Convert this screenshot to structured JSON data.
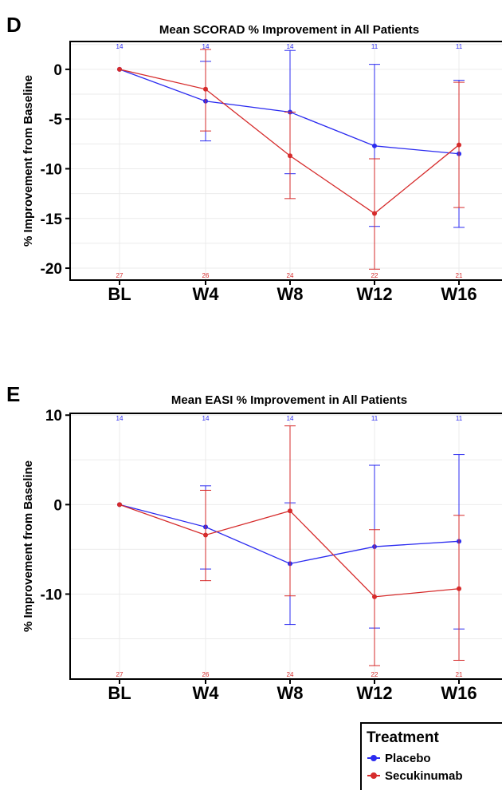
{
  "colors": {
    "placebo": "#2b2bf0",
    "secukinumab": "#d62b2b"
  },
  "legend": {
    "title": "Treatment",
    "entries": [
      {
        "label": "Placebo",
        "color": "#2b2bf0"
      },
      {
        "label": "Secukinumab",
        "color": "#d62b2b"
      }
    ]
  },
  "chart_data": [
    {
      "type": "line",
      "panel": "D",
      "title": "Mean SCORAD % Improvement in All Patients",
      "xlabel": "",
      "ylabel": "% Improvement from Baseline",
      "categories": [
        "BL",
        "W4",
        "W8",
        "W12",
        "W16"
      ],
      "yticks": [
        0,
        -5,
        -10,
        -15,
        -20
      ],
      "ylim": [
        -21.2,
        2.8
      ],
      "grid": true,
      "series": [
        {
          "name": "Placebo",
          "color": "#2b2bf0",
          "values": [
            0,
            -3.2,
            -4.3,
            -7.7,
            -8.5
          ],
          "error_low": [
            0,
            -7.2,
            -10.5,
            -15.8,
            -15.9
          ],
          "error_high": [
            0,
            0.8,
            1.9,
            0.5,
            -1.1
          ],
          "counts": [
            "14",
            "14",
            "14",
            "11",
            "11"
          ]
        },
        {
          "name": "Secukinumab",
          "color": "#d62b2b",
          "values": [
            0,
            -2.0,
            -8.7,
            -14.5,
            -7.6
          ],
          "error_low": [
            0,
            -6.2,
            -13.0,
            -20.1,
            -13.9
          ],
          "error_high": [
            0,
            2.0,
            -4.3,
            -9.0,
            -1.3
          ],
          "counts": [
            "27",
            "26",
            "24",
            "22",
            "21"
          ]
        }
      ]
    },
    {
      "type": "line",
      "panel": "E",
      "title": "Mean EASI % Improvement in All Patients",
      "xlabel": "",
      "ylabel": "% Improvement from Baseline",
      "categories": [
        "BL",
        "W4",
        "W8",
        "W12",
        "W16"
      ],
      "yticks": [
        10,
        0,
        -10
      ],
      "ylim": [
        -19.5,
        10.2
      ],
      "grid": true,
      "series": [
        {
          "name": "Placebo",
          "color": "#2b2bf0",
          "values": [
            0,
            -2.5,
            -6.6,
            -4.7,
            -4.1
          ],
          "error_low": [
            0,
            -7.2,
            -13.4,
            -13.8,
            -13.9
          ],
          "error_high": [
            0,
            2.1,
            0.2,
            4.4,
            5.6
          ],
          "counts": [
            "14",
            "14",
            "14",
            "11",
            "11"
          ]
        },
        {
          "name": "Secukinumab",
          "color": "#d62b2b",
          "values": [
            0,
            -3.4,
            -0.7,
            -10.3,
            -9.4
          ],
          "error_low": [
            0,
            -8.5,
            -10.2,
            -18.0,
            -17.4
          ],
          "error_high": [
            0,
            1.6,
            8.8,
            -2.8,
            -1.2
          ],
          "counts": [
            "27",
            "26",
            "24",
            "22",
            "21"
          ]
        }
      ]
    }
  ]
}
